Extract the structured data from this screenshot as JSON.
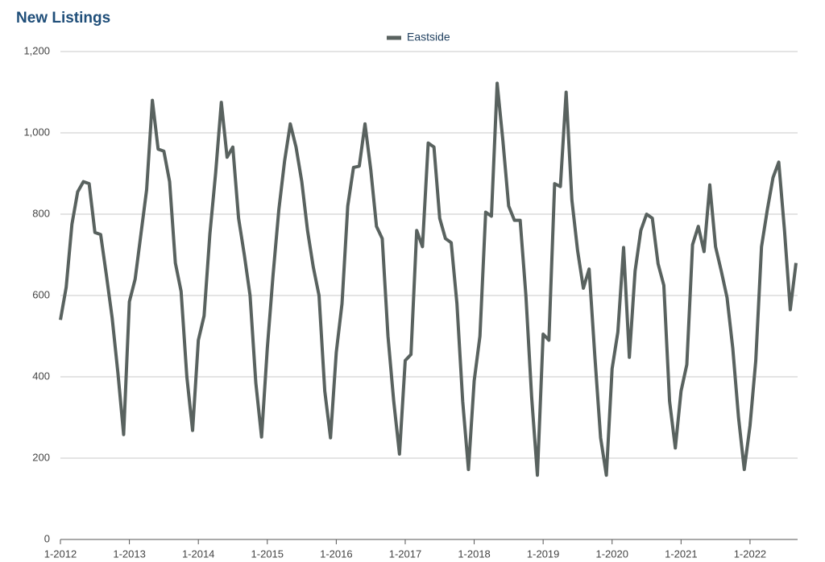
{
  "chart_data": {
    "type": "line",
    "title": "New Listings",
    "categories": [
      "1-2012",
      null,
      null,
      null,
      null,
      null,
      null,
      null,
      null,
      null,
      null,
      null,
      "1-2013",
      null,
      null,
      null,
      null,
      null,
      null,
      null,
      null,
      null,
      null,
      null,
      "1-2014",
      null,
      null,
      null,
      null,
      null,
      null,
      null,
      null,
      null,
      null,
      null,
      "1-2015",
      null,
      null,
      null,
      null,
      null,
      null,
      null,
      null,
      null,
      null,
      null,
      "1-2016",
      null,
      null,
      null,
      null,
      null,
      null,
      null,
      null,
      null,
      null,
      null,
      "1-2017",
      null,
      null,
      null,
      null,
      null,
      null,
      null,
      null,
      null,
      null,
      null,
      "1-2018",
      null,
      null,
      null,
      null,
      null,
      null,
      null,
      null,
      null,
      null,
      null,
      "1-2019",
      null,
      null,
      null,
      null,
      null,
      null,
      null,
      null,
      null,
      null,
      null,
      "1-2020",
      null,
      null,
      null,
      null,
      null,
      null,
      null,
      null,
      null,
      null,
      null,
      "1-2021",
      null,
      null,
      null,
      null,
      null,
      null,
      null,
      null,
      null,
      null,
      null,
      "1-2022",
      null,
      null,
      null,
      null,
      null,
      null,
      null,
      null
    ],
    "series": [
      {
        "name": "Eastside",
        "color": "#59625f",
        "values": [
          540,
          620,
          775,
          855,
          880,
          875,
          755,
          750,
          650,
          545,
          410,
          258,
          585,
          640,
          750,
          860,
          1080,
          960,
          955,
          880,
          680,
          610,
          400,
          268,
          490,
          550,
          750,
          900,
          1075,
          940,
          965,
          790,
          700,
          600,
          385,
          252,
          470,
          650,
          810,
          930,
          1022,
          965,
          880,
          760,
          670,
          600,
          365,
          250,
          460,
          580,
          820,
          915,
          918,
          1022,
          910,
          770,
          740,
          500,
          340,
          210,
          440,
          455,
          760,
          720,
          975,
          965,
          790,
          740,
          730,
          580,
          340,
          172,
          390,
          500,
          805,
          795,
          1122,
          980,
          820,
          785,
          785,
          600,
          350,
          158,
          505,
          490,
          875,
          868,
          1100,
          835,
          710,
          618,
          665,
          450,
          250,
          158,
          420,
          510,
          718,
          448,
          660,
          760,
          800,
          790,
          678,
          625,
          340,
          225,
          365,
          430,
          725,
          770,
          708,
          872,
          720,
          660,
          595,
          470,
          300,
          172,
          280,
          440,
          720,
          810,
          890,
          928,
          760,
          565,
          680
        ]
      }
    ],
    "ylim": [
      0,
      1200
    ],
    "yticks": [
      0,
      200,
      400,
      600,
      800,
      {
        "value": 1000,
        "label": "1,000"
      },
      {
        "value": 1200,
        "label": "1,200"
      }
    ],
    "grid": true,
    "legend": "top"
  }
}
